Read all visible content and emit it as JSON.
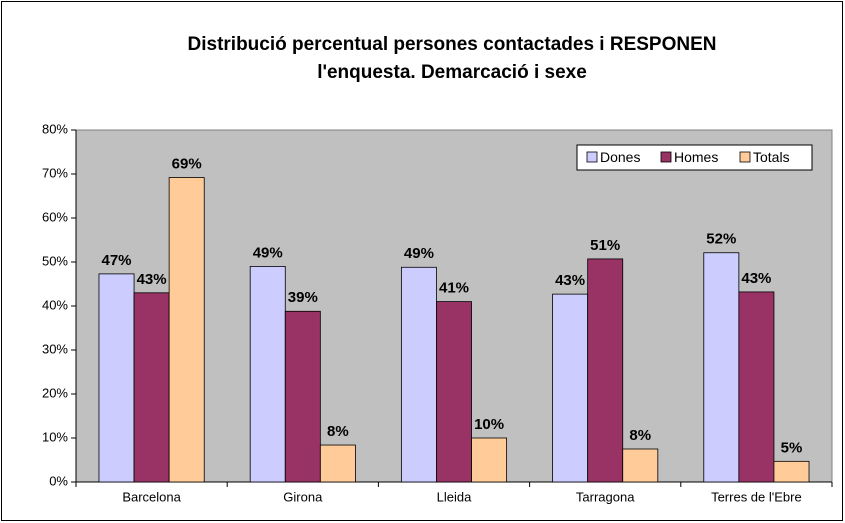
{
  "chart_data": {
    "type": "bar",
    "title": [
      "Distribució percentual persones contactades i RESPONEN",
      "l'enquesta. Demarcació i sexe"
    ],
    "categories": [
      "Barcelona",
      "Girona",
      "Lleida",
      "Tarragona",
      "Terres de l'Ebre"
    ],
    "series": [
      {
        "name": "Dones",
        "color": "#CCCCFF",
        "values": [
          47.3,
          49.0,
          48.8,
          42.7,
          52.1
        ],
        "value_labels": [
          "47%",
          "49%",
          "49%",
          "43%",
          "52%"
        ]
      },
      {
        "name": "Homes",
        "color": "#993366",
        "values": [
          43.0,
          38.8,
          41.0,
          50.7,
          43.2
        ],
        "value_labels": [
          "43%",
          "39%",
          "41%",
          "51%",
          "43%"
        ]
      },
      {
        "name": "Totals",
        "color": "#FFCC99",
        "values": [
          69.2,
          8.4,
          10.0,
          7.5,
          4.7
        ],
        "value_labels": [
          "69%",
          "8%",
          "10%",
          "8%",
          "5%"
        ]
      }
    ],
    "ylim": [
      0,
      80
    ],
    "yticks": [
      {
        "value": 0,
        "label": "0%"
      },
      {
        "value": 10,
        "label": "10%"
      },
      {
        "value": 20,
        "label": "20%"
      },
      {
        "value": 30,
        "label": "30%"
      },
      {
        "value": 40,
        "label": "40%"
      },
      {
        "value": 50,
        "label": "50%"
      },
      {
        "value": 60,
        "label": "60%"
      },
      {
        "value": 70,
        "label": "70%"
      },
      {
        "value": 80,
        "label": "80%"
      }
    ],
    "legend": "top-right",
    "plot_background": "#C0C0C0"
  }
}
